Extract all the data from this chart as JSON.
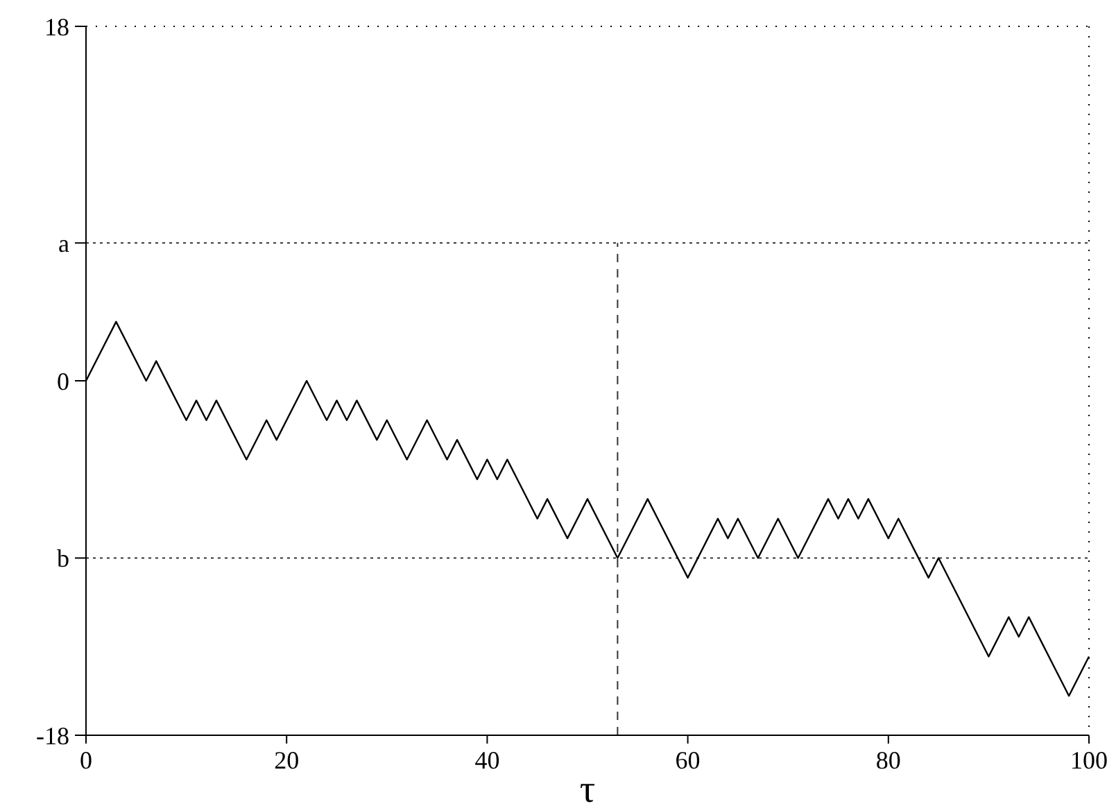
{
  "chart_data": {
    "type": "line",
    "xlabel": "τ",
    "x": [
      0,
      3,
      6,
      7,
      10,
      11,
      12,
      13,
      16,
      18,
      19,
      22,
      24,
      25,
      26,
      27,
      29,
      30,
      32,
      34,
      36,
      37,
      39,
      40,
      41,
      42,
      45,
      46,
      48,
      50,
      53,
      56,
      60,
      63,
      64,
      65,
      67,
      69,
      71,
      74,
      75,
      76,
      77,
      78,
      80,
      81,
      84,
      85,
      90,
      92,
      93,
      94,
      98,
      100
    ],
    "values": [
      0,
      3,
      0,
      1,
      -2,
      -1,
      -2,
      -1,
      -4,
      -2,
      -3,
      0,
      -2,
      -1,
      -2,
      -1,
      -3,
      -2,
      -4,
      -2,
      -4,
      -3,
      -5,
      -4,
      -5,
      -4,
      -7,
      -6,
      -8,
      -6,
      -9,
      -6,
      -10,
      -7,
      -8,
      -7,
      -9,
      -7,
      -9,
      -6,
      -7,
      -6,
      -7,
      -6,
      -8,
      -7,
      -10,
      -9,
      -14,
      -12,
      -13,
      -12,
      -16,
      -14
    ],
    "color": "#000000",
    "xlim": [
      0,
      100
    ],
    "xticks": [
      0,
      20,
      40,
      60,
      80,
      100
    ],
    "ylim": [
      -18,
      18
    ],
    "yticks": [
      -18,
      {
        "value": -9,
        "label": "b"
      },
      0,
      {
        "value": 7,
        "label": "a"
      },
      18
    ],
    "ref_lines": [
      {
        "axis": "y",
        "value": 7,
        "line_style": "dotted"
      },
      {
        "axis": "y",
        "value": -9,
        "line_style": "dotted"
      },
      {
        "axis": "x",
        "value": 53,
        "line_style": "dashed"
      }
    ],
    "grid": false,
    "marker": "none",
    "line_style": "solid"
  }
}
